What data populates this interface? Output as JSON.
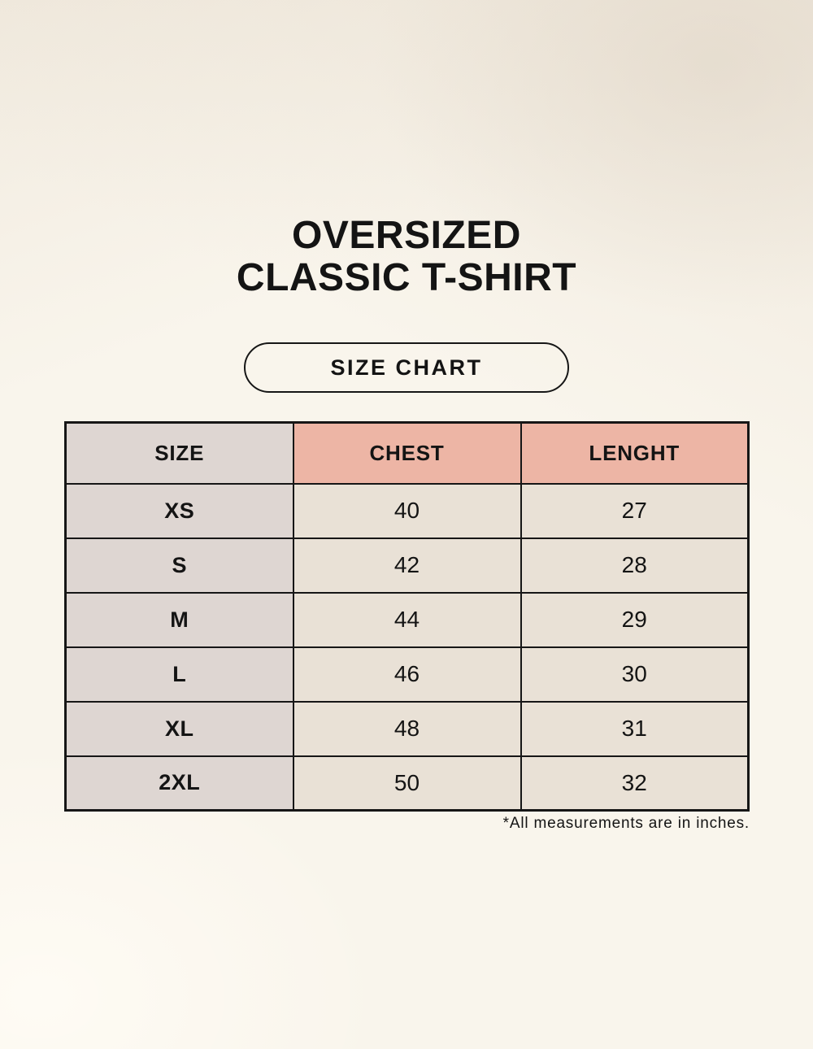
{
  "title": {
    "line1": "OVERSIZED",
    "line2": "CLASSIC T-SHIRT"
  },
  "badge": {
    "label": "SIZE CHART"
  },
  "table": {
    "columns": [
      "SIZE",
      "CHEST",
      "LENGHT"
    ],
    "rows": [
      [
        "XS",
        "40",
        "27"
      ],
      [
        "S",
        "42",
        "28"
      ],
      [
        "M",
        "44",
        "29"
      ],
      [
        "L",
        "46",
        "30"
      ],
      [
        "XL",
        "48",
        "31"
      ],
      [
        "2XL",
        "50",
        "32"
      ]
    ]
  },
  "footnote": "*All measurements are in inches.",
  "colors": {
    "background": "#f9f5ec",
    "size_column_bg": "#ded6d2",
    "accent_header_bg": "#edb5a5",
    "cell_bg": "#e9e1d6",
    "border": "#161616",
    "text": "#141414"
  }
}
